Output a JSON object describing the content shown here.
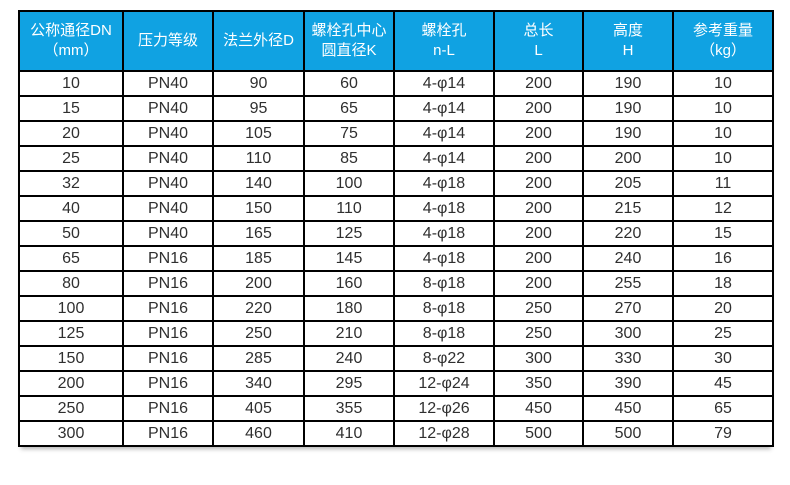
{
  "colors": {
    "header_bg": "#10a2e2",
    "header_text": "#ffffff",
    "body_text": "#2f2f2f",
    "grid_border": "#000000",
    "page_bg": "#ffffff"
  },
  "table": {
    "name": "flange-dimension-spec-table",
    "columns": [
      {
        "id": "dn",
        "lines": [
          "公称通径DN",
          "（mm）"
        ]
      },
      {
        "id": "pn",
        "lines": [
          "压力等级"
        ]
      },
      {
        "id": "d",
        "lines": [
          "法兰外径D"
        ]
      },
      {
        "id": "k",
        "lines": [
          "螺栓孔中心",
          "圆直径K"
        ]
      },
      {
        "id": "nl",
        "lines": [
          "螺栓孔",
          "n-L"
        ]
      },
      {
        "id": "l",
        "lines": [
          "总长",
          "L"
        ]
      },
      {
        "id": "h",
        "lines": [
          "高度",
          "H"
        ]
      },
      {
        "id": "weight",
        "lines": [
          "参考重量",
          "（kg）"
        ]
      }
    ],
    "rows": [
      [
        "10",
        "PN40",
        "90",
        "60",
        "4-φ14",
        "200",
        "190",
        "10"
      ],
      [
        "15",
        "PN40",
        "95",
        "65",
        "4-φ14",
        "200",
        "190",
        "10"
      ],
      [
        "20",
        "PN40",
        "105",
        "75",
        "4-φ14",
        "200",
        "190",
        "10"
      ],
      [
        "25",
        "PN40",
        "110",
        "85",
        "4-φ14",
        "200",
        "200",
        "10"
      ],
      [
        "32",
        "PN40",
        "140",
        "100",
        "4-φ18",
        "200",
        "205",
        "11"
      ],
      [
        "40",
        "PN40",
        "150",
        "110",
        "4-φ18",
        "200",
        "215",
        "12"
      ],
      [
        "50",
        "PN40",
        "165",
        "125",
        "4-φ18",
        "200",
        "220",
        "15"
      ],
      [
        "65",
        "PN16",
        "185",
        "145",
        "4-φ18",
        "200",
        "240",
        "16"
      ],
      [
        "80",
        "PN16",
        "200",
        "160",
        "8-φ18",
        "200",
        "255",
        "18"
      ],
      [
        "100",
        "PN16",
        "220",
        "180",
        "8-φ18",
        "250",
        "270",
        "20"
      ],
      [
        "125",
        "PN16",
        "250",
        "210",
        "8-φ18",
        "250",
        "300",
        "25"
      ],
      [
        "150",
        "PN16",
        "285",
        "240",
        "8-φ22",
        "300",
        "330",
        "30"
      ],
      [
        "200",
        "PN16",
        "340",
        "295",
        "12-φ24",
        "350",
        "390",
        "45"
      ],
      [
        "250",
        "PN16",
        "405",
        "355",
        "12-φ26",
        "450",
        "450",
        "65"
      ],
      [
        "300",
        "PN16",
        "460",
        "410",
        "12-φ28",
        "500",
        "500",
        "79"
      ]
    ]
  }
}
